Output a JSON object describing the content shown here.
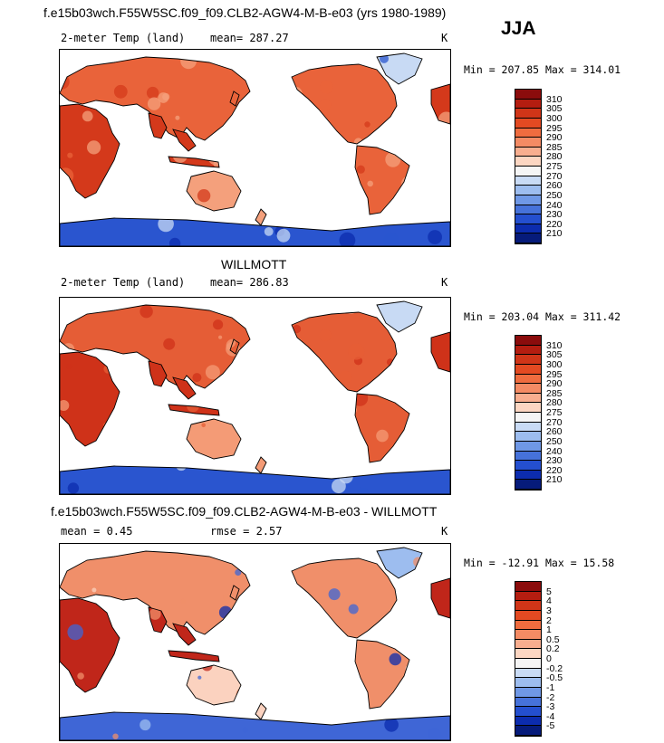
{
  "header": {
    "title": "f.e15b03wch.F55W5SC.f09_f09.CLB2-AGW4-M-B-e03 (yrs 1980-1989)",
    "season": "JJA"
  },
  "panels": [
    {
      "id": "model",
      "left_label": "2-meter Temp (land)",
      "center_label": "mean= 287.27",
      "units": "K",
      "minmax": "Min = 207.85 Max = 314.01",
      "colorbar": {
        "labels": [
          "310",
          "305",
          "300",
          "295",
          "290",
          "285",
          "280",
          "275",
          "270",
          "260",
          "250",
          "240",
          "230",
          "220",
          "210"
        ],
        "colors": [
          "#8b0c0c",
          "#b41d10",
          "#d03518",
          "#e34a22",
          "#ef6c3f",
          "#f48b64",
          "#f8ae8f",
          "#fcd6c2",
          "#f5f5f5",
          "#c9dbf5",
          "#9dbdef",
          "#6f98e6",
          "#4672da",
          "#244fcf",
          "#0c2cae",
          "#061b7a"
        ]
      }
    },
    {
      "id": "obs",
      "section_title": "WILLMOTT",
      "left_label": "2-meter Temp (land)",
      "center_label": "mean= 286.83",
      "units": "K",
      "minmax": "Min = 203.04 Max = 311.42",
      "colorbar": {
        "labels": [
          "310",
          "305",
          "300",
          "295",
          "290",
          "285",
          "280",
          "275",
          "270",
          "260",
          "250",
          "240",
          "230",
          "220",
          "210"
        ],
        "colors": [
          "#8b0c0c",
          "#b41d10",
          "#d03518",
          "#e34a22",
          "#ef6c3f",
          "#f48b64",
          "#f8ae8f",
          "#fcd6c2",
          "#f5f5f5",
          "#c9dbf5",
          "#9dbdef",
          "#6f98e6",
          "#4672da",
          "#244fcf",
          "#0c2cae",
          "#061b7a"
        ]
      }
    },
    {
      "id": "diff",
      "section_title": "f.e15b03wch.F55W5SC.f09_f09.CLB2-AGW4-M-B-e03 - WILLMOTT",
      "left_label": "mean =    0.45",
      "center_label": "rmse =    2.57",
      "units": "K",
      "minmax": "Min = -12.91 Max =  15.58",
      "colorbar": {
        "labels": [
          "5",
          "4",
          "3",
          "2",
          "1",
          "0.5",
          "0.2",
          "0",
          "-0.2",
          "-0.5",
          "-1",
          "-2",
          "-3",
          "-4",
          "-5"
        ],
        "colors": [
          "#8b0c0c",
          "#b41d10",
          "#d03518",
          "#e34a22",
          "#ef6c3f",
          "#f48b64",
          "#f8ae8f",
          "#fcd6c2",
          "#f5f5f5",
          "#c9dbf5",
          "#9dbdef",
          "#6f98e6",
          "#4672da",
          "#244fcf",
          "#0c2cae",
          "#061b7a"
        ]
      }
    }
  ]
}
